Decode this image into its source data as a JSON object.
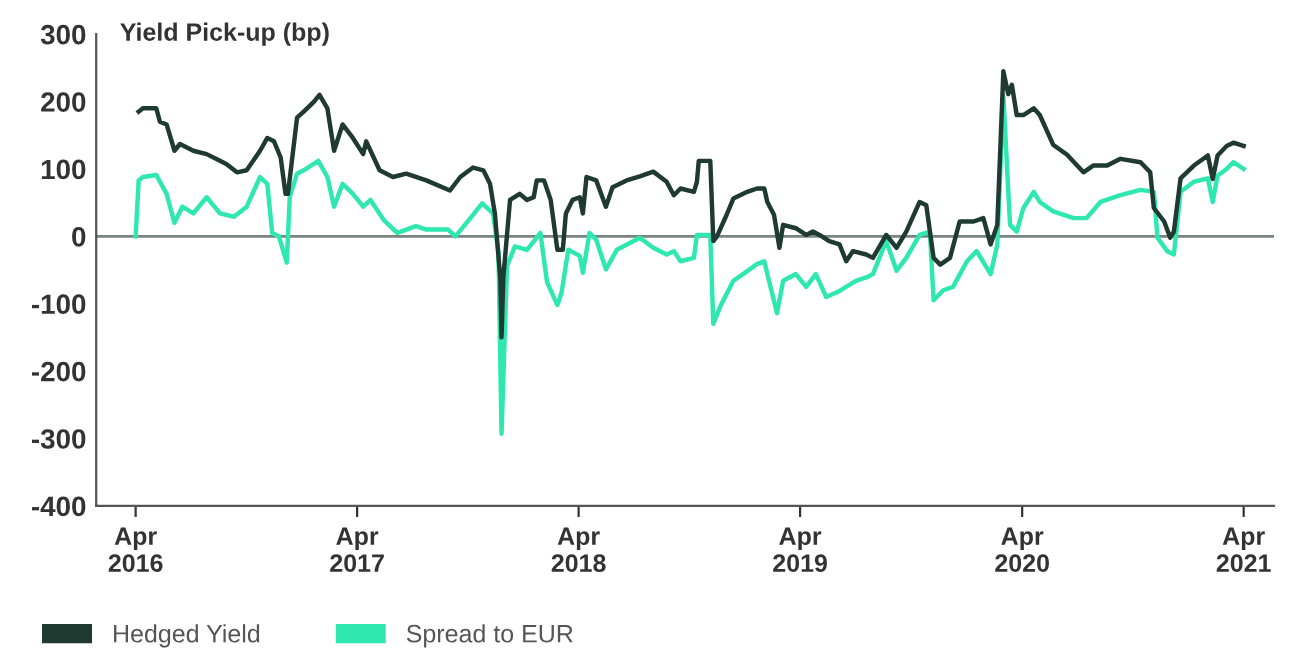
{
  "chart_data": {
    "type": "line",
    "ylabel": "Yield Pick-up (bp)",
    "xlim": [
      "2016-01-27",
      "2021-05-21"
    ],
    "xticks": [
      {
        "value": "2016-04-01",
        "label": "Apr\n2016"
      },
      {
        "value": "2017-04-01",
        "label": "Apr\n2017"
      },
      {
        "value": "2018-04-01",
        "label": "Apr\n2018"
      },
      {
        "value": "2019-04-01",
        "label": "Apr\n2019"
      },
      {
        "value": "2020-04-01",
        "label": "Apr\n2020"
      },
      {
        "value": "2021-04-01",
        "label": "Apr\n2021"
      }
    ],
    "ylim": [
      -400,
      300
    ],
    "yticks": [
      -400,
      -300,
      -200,
      -100,
      0,
      100,
      200,
      300
    ],
    "ref_lines": [
      {
        "axis": "y",
        "value": 0,
        "color": "#7a8580"
      }
    ],
    "grid": false,
    "legend": "bottom left",
    "line_style": "solid",
    "marker": "none",
    "series": [
      {
        "name": "Hedged Yield",
        "color": "#1f3a30",
        "x": [
          "2016-04-06",
          "2016-04-13",
          "2016-05-05",
          "2016-05-11",
          "2016-05-22",
          "2016-06-04",
          "2016-06-13",
          "2016-07-05",
          "2016-07-27",
          "2016-08-18",
          "2016-08-29",
          "2016-09-15",
          "2016-10-01",
          "2016-10-23",
          "2016-11-04",
          "2016-11-15",
          "2016-11-26",
          "2016-12-04",
          "2016-12-08",
          "2016-12-23",
          "2017-01-03",
          "2017-01-20",
          "2017-01-29",
          "2017-02-11",
          "2017-02-22",
          "2017-03-08",
          "2017-03-25",
          "2017-04-11",
          "2017-04-16",
          "2017-05-08",
          "2017-05-30",
          "2017-06-21",
          "2017-07-24",
          "2017-09-01",
          "2017-09-18",
          "2017-10-09",
          "2017-10-26",
          "2017-11-06",
          "2017-11-14",
          "2017-11-23",
          "2017-11-25",
          "2017-11-28",
          "2017-12-09",
          "2017-12-25",
          "2018-01-06",
          "2018-01-17",
          "2018-01-22",
          "2018-02-03",
          "2018-02-14",
          "2018-02-25",
          "2018-03-06",
          "2018-03-11",
          "2018-03-22",
          "2018-04-03",
          "2018-04-08",
          "2018-04-14",
          "2018-04-30",
          "2018-05-16",
          "2018-05-27",
          "2018-06-19",
          "2018-07-11",
          "2018-08-02",
          "2018-08-24",
          "2018-09-05",
          "2018-09-16",
          "2018-10-08",
          "2018-10-13",
          "2018-10-16",
          "2018-11-04",
          "2018-11-09",
          "2018-11-15",
          "2018-12-01",
          "2018-12-12",
          "2019-01-04",
          "2019-01-20",
          "2019-02-01",
          "2019-02-06",
          "2019-02-17",
          "2019-02-26",
          "2019-03-04",
          "2019-03-25",
          "2019-04-11",
          "2019-04-22",
          "2019-05-03",
          "2019-05-19",
          "2019-06-05",
          "2019-06-16",
          "2019-06-27",
          "2019-07-19",
          "2019-07-30",
          "2019-08-21",
          "2019-09-07",
          "2019-09-23",
          "2019-10-15",
          "2019-10-26",
          "2019-11-07",
          "2019-11-18",
          "2019-12-04",
          "2019-12-20",
          "2020-01-12",
          "2020-01-28",
          "2020-02-09",
          "2020-02-20",
          "2020-03-01",
          "2020-03-09",
          "2020-03-15",
          "2020-03-23",
          "2020-04-03",
          "2020-04-20",
          "2020-04-30",
          "2020-05-22",
          "2020-06-14",
          "2020-07-11",
          "2020-07-27",
          "2020-08-19",
          "2020-09-10",
          "2020-10-13",
          "2020-10-29",
          "2020-11-04",
          "2020-11-21",
          "2020-12-01",
          "2020-12-07",
          "2020-12-18",
          "2021-01-09",
          "2021-02-01",
          "2021-02-09",
          "2021-02-17",
          "2021-03-04",
          "2021-03-15",
          "2021-04-01"
        ],
        "values": [
          185,
          190,
          190,
          170,
          166,
          127,
          137,
          127,
          122,
          112,
          107,
          95,
          98,
          127,
          146,
          141,
          117,
          63,
          63,
          176,
          185,
          200,
          210,
          190,
          127,
          166,
          146,
          122,
          141,
          98,
          88,
          93,
          83,
          68,
          88,
          102,
          98,
          78,
          34,
          -63,
          -150,
          -60,
          54,
          63,
          54,
          58,
          83,
          83,
          54,
          -20,
          -20,
          34,
          54,
          58,
          34,
          88,
          83,
          44,
          73,
          83,
          89,
          96,
          81,
          61,
          71,
          66,
          81,
          112,
          112,
          -7,
          0,
          32,
          56,
          66,
          71,
          71,
          51,
          32,
          -17,
          17,
          12,
          2,
          7,
          2,
          -7,
          -12,
          -37,
          -22,
          -27,
          -32,
          2,
          -17,
          7,
          51,
          46,
          -32,
          -42,
          -32,
          22,
          22,
          27,
          -12,
          17,
          245,
          211,
          225,
          180,
          180,
          190,
          180,
          136,
          121,
          95,
          105,
          105,
          115,
          110,
          95,
          42,
          22,
          -2,
          7,
          86,
          105,
          120,
          85,
          120,
          134,
          139,
          134
        ]
      },
      {
        "name": "Spread to EUR",
        "color": "#2ee8b0",
        "x": [
          "2016-04-01",
          "2016-04-06",
          "2016-04-13",
          "2016-05-05",
          "2016-05-22",
          "2016-06-04",
          "2016-06-17",
          "2016-07-05",
          "2016-07-27",
          "2016-08-18",
          "2016-09-10",
          "2016-10-01",
          "2016-10-23",
          "2016-11-04",
          "2016-11-12",
          "2016-11-23",
          "2016-12-06",
          "2016-12-11",
          "2016-12-23",
          "2017-01-03",
          "2017-01-27",
          "2017-02-11",
          "2017-02-22",
          "2017-03-08",
          "2017-03-25",
          "2017-04-11",
          "2017-04-23",
          "2017-05-15",
          "2017-06-06",
          "2017-06-21",
          "2017-07-07",
          "2017-07-24",
          "2017-08-29",
          "2017-09-10",
          "2017-10-02",
          "2017-10-24",
          "2017-11-11",
          "2017-11-20",
          "2017-11-25",
          "2017-12-04",
          "2017-12-17",
          "2018-01-06",
          "2018-01-28",
          "2018-02-08",
          "2018-02-25",
          "2018-03-04",
          "2018-03-15",
          "2018-04-03",
          "2018-04-08",
          "2018-04-19",
          "2018-04-30",
          "2018-05-16",
          "2018-06-03",
          "2018-07-11",
          "2018-08-02",
          "2018-08-24",
          "2018-09-05",
          "2018-09-16",
          "2018-10-08",
          "2018-10-13",
          "2018-11-04",
          "2018-11-09",
          "2018-11-20",
          "2018-12-12",
          "2018-12-28",
          "2019-01-20",
          "2019-02-01",
          "2019-02-06",
          "2019-02-22",
          "2019-03-04",
          "2019-03-25",
          "2019-04-11",
          "2019-04-27",
          "2019-05-14",
          "2019-06-05",
          "2019-07-02",
          "2019-07-19",
          "2019-07-30",
          "2019-08-21",
          "2019-09-07",
          "2019-09-23",
          "2019-10-15",
          "2019-11-01",
          "2019-11-07",
          "2019-11-23",
          "2019-12-09",
          "2020-01-01",
          "2020-01-17",
          "2020-02-09",
          "2020-02-20",
          "2020-03-01",
          "2020-03-12",
          "2020-03-23",
          "2020-04-03",
          "2020-04-20",
          "2020-04-30",
          "2020-05-22",
          "2020-06-25",
          "2020-07-16",
          "2020-08-08",
          "2020-09-10",
          "2020-10-13",
          "2020-11-04",
          "2020-11-10",
          "2020-11-26",
          "2020-12-07",
          "2020-12-18",
          "2021-01-09",
          "2021-02-01",
          "2021-02-09",
          "2021-02-17",
          "2021-03-04",
          "2021-03-15",
          "2021-04-01"
        ],
        "values": [
          0,
          83,
          88,
          91,
          63,
          20,
          44,
          34,
          58,
          34,
          29,
          44,
          88,
          78,
          5,
          0,
          -39,
          59,
          93,
          98,
          112,
          88,
          44,
          78,
          63,
          44,
          54,
          24,
          5,
          10,
          15,
          10,
          10,
          0,
          24,
          49,
          34,
          -24,
          -293,
          -44,
          -15,
          -20,
          5,
          -68,
          -102,
          -83,
          -20,
          -29,
          -54,
          5,
          -5,
          -49,
          -20,
          -2,
          -17,
          -27,
          -22,
          -37,
          -32,
          2,
          2,
          -130,
          -105,
          -66,
          -56,
          -41,
          -37,
          -56,
          -114,
          -66,
          -56,
          -75,
          -56,
          -90,
          -81,
          -66,
          -61,
          -56,
          -7,
          -51,
          -32,
          2,
          7,
          -95,
          -80,
          -75,
          -37,
          -22,
          -56,
          -12,
          208,
          17,
          7,
          42,
          66,
          51,
          37,
          27,
          27,
          51,
          61,
          69,
          66,
          -2,
          -22,
          -27,
          66,
          81,
          86,
          51,
          90,
          100,
          110,
          100
        ]
      }
    ]
  }
}
